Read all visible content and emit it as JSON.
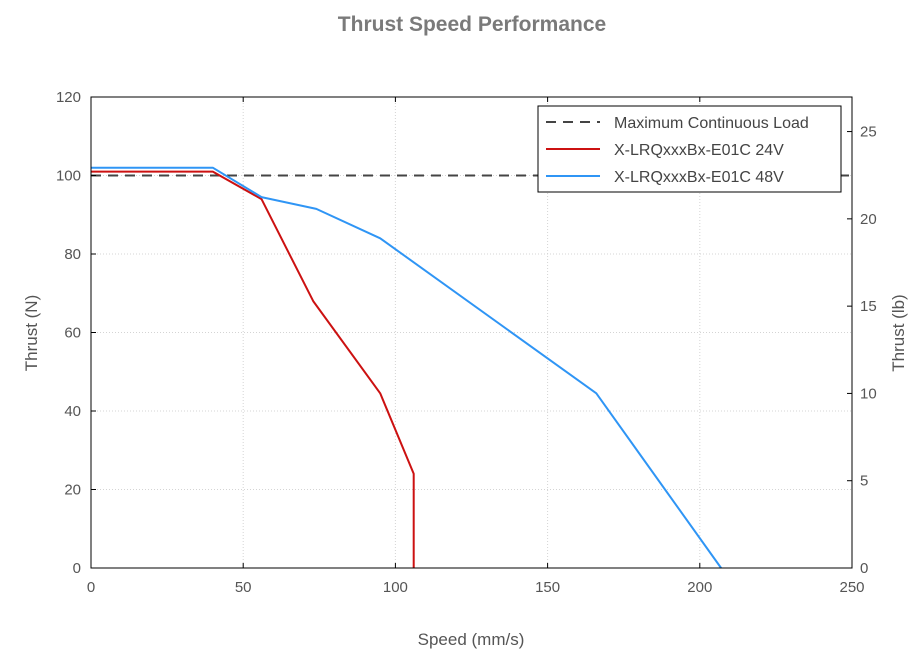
{
  "chart_data": {
    "type": "line",
    "title": "Thrust Speed Performance",
    "xlabel": "Speed (mm/s)",
    "ylabel": "Thrust (N)",
    "ylabel_right": "Thrust (lb)",
    "xlim": [
      0,
      250
    ],
    "ylim": [
      0,
      120
    ],
    "ylim_right": [
      0,
      26.98
    ],
    "x_ticks": [
      0,
      50,
      100,
      150,
      200,
      250
    ],
    "y_ticks": [
      0,
      20,
      40,
      60,
      80,
      100,
      120
    ],
    "y_ticks_right": [
      0,
      5,
      10,
      15,
      20,
      25
    ],
    "grid": true,
    "legend_position": "top-right",
    "series": [
      {
        "name": "Maximum Continuous Load",
        "color": "#444444",
        "style": "dashed",
        "x": [
          0,
          250
        ],
        "y": [
          100,
          100
        ]
      },
      {
        "name": "X-LRQxxxBx-E01C 24V",
        "color": "#cc1111",
        "style": "solid",
        "x": [
          0,
          40,
          56,
          73,
          95,
          106,
          106
        ],
        "y": [
          101,
          101,
          94,
          68,
          44.5,
          24,
          0
        ]
      },
      {
        "name": "X-LRQxxxBx-E01C 48V",
        "color": "#2f95f5",
        "style": "solid",
        "x": [
          0,
          40,
          56,
          74,
          95,
          166,
          207
        ],
        "y": [
          102,
          102,
          94.5,
          91.5,
          84,
          44.5,
          0
        ]
      }
    ]
  }
}
